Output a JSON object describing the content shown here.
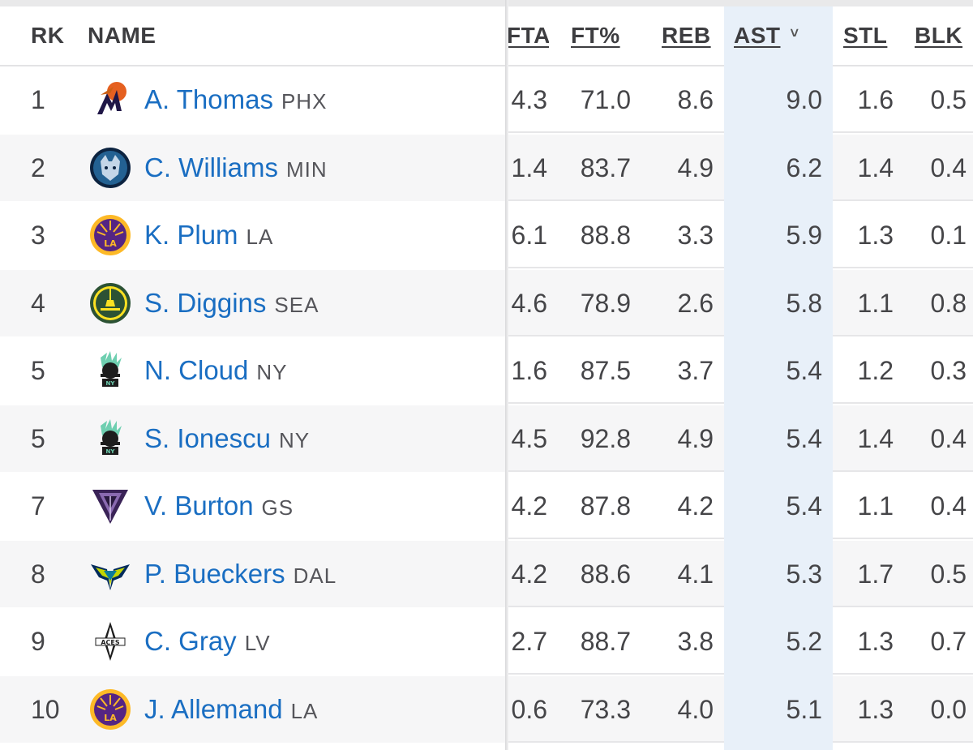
{
  "header": {
    "rk": "RK",
    "name": "NAME",
    "fta": "FTA",
    "ftp": "FT%",
    "reb": "REB",
    "ast": "AST",
    "stl": "STL",
    "blk": "BLK",
    "sort_indicator": "˅"
  },
  "rows": [
    {
      "rk": "1",
      "player": "A. Thomas",
      "team": "PHX",
      "logo": "phoenix-mercury-logo",
      "fta": "4.3",
      "ftp": "71.0",
      "reb": "8.6",
      "ast": "9.0",
      "stl": "1.6",
      "blk": "0.5"
    },
    {
      "rk": "2",
      "player": "C. Williams",
      "team": "MIN",
      "logo": "minnesota-lynx-logo",
      "fta": "1.4",
      "ftp": "83.7",
      "reb": "4.9",
      "ast": "6.2",
      "stl": "1.4",
      "blk": "0.4"
    },
    {
      "rk": "3",
      "player": "K. Plum",
      "team": "LA",
      "logo": "los-angeles-sparks-logo",
      "fta": "6.1",
      "ftp": "88.8",
      "reb": "3.3",
      "ast": "5.9",
      "stl": "1.3",
      "blk": "0.1"
    },
    {
      "rk": "4",
      "player": "S. Diggins",
      "team": "SEA",
      "logo": "seattle-storm-logo",
      "fta": "4.6",
      "ftp": "78.9",
      "reb": "2.6",
      "ast": "5.8",
      "stl": "1.1",
      "blk": "0.8"
    },
    {
      "rk": "5",
      "player": "N. Cloud",
      "team": "NY",
      "logo": "new-york-liberty-logo",
      "fta": "1.6",
      "ftp": "87.5",
      "reb": "3.7",
      "ast": "5.4",
      "stl": "1.2",
      "blk": "0.3"
    },
    {
      "rk": "5",
      "player": "S. Ionescu",
      "team": "NY",
      "logo": "new-york-liberty-logo",
      "fta": "4.5",
      "ftp": "92.8",
      "reb": "4.9",
      "ast": "5.4",
      "stl": "1.4",
      "blk": "0.4"
    },
    {
      "rk": "7",
      "player": "V. Burton",
      "team": "GS",
      "logo": "golden-state-valkyries-logo",
      "fta": "4.2",
      "ftp": "87.8",
      "reb": "4.2",
      "ast": "5.4",
      "stl": "1.1",
      "blk": "0.4"
    },
    {
      "rk": "8",
      "player": "P. Bueckers",
      "team": "DAL",
      "logo": "dallas-wings-logo",
      "fta": "4.2",
      "ftp": "88.6",
      "reb": "4.1",
      "ast": "5.3",
      "stl": "1.7",
      "blk": "0.5"
    },
    {
      "rk": "9",
      "player": "C. Gray",
      "team": "LV",
      "logo": "las-vegas-aces-logo",
      "fta": "2.7",
      "ftp": "88.7",
      "reb": "3.8",
      "ast": "5.2",
      "stl": "1.3",
      "blk": "0.7"
    },
    {
      "rk": "10",
      "player": "J. Allemand",
      "team": "LA",
      "logo": "los-angeles-sparks-logo",
      "fta": "0.6",
      "ftp": "73.3",
      "reb": "4.0",
      "ast": "5.1",
      "stl": "1.3",
      "blk": "0.0"
    }
  ],
  "colors": {
    "link": "#1a6ec2",
    "sorted_column_bg": "#e8f0f9",
    "alt_row_bg": "#f6f6f7"
  }
}
